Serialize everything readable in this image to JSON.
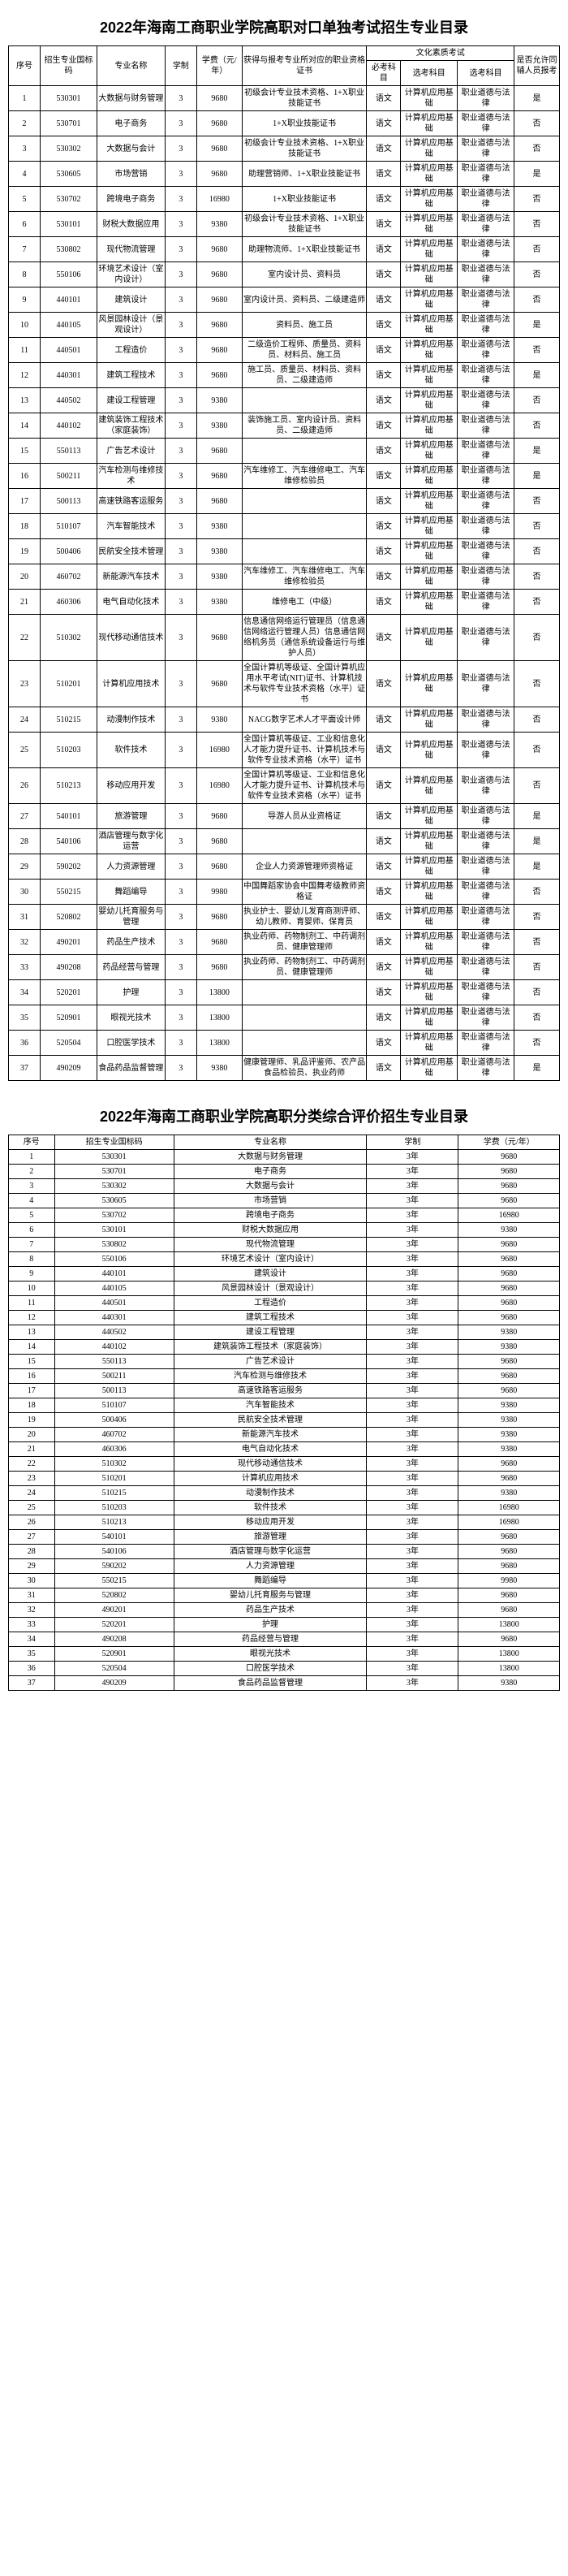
{
  "table1": {
    "title": "2022年海南工商职业学院高职对口单独考试招生专业目录",
    "headers": {
      "h1": "序号",
      "h2": "招生专业国标码",
      "h3": "专业名称",
      "h4": "学制",
      "h5": "学费（元/年）",
      "h6": "获得与报考专业所对应的职业资格证书",
      "h7_group": "文化素质考试",
      "h7": "必考科目",
      "h8": "选考科目",
      "h9": "选考科目",
      "h10": "是否允许同辅人员报考"
    },
    "rows": [
      {
        "n": "1",
        "code": "530301",
        "name": "大数据与财务管理",
        "dur": "3",
        "fee": "9680",
        "cert": "初级会计专业技术资格、1+X职业技能证书",
        "req": "语文",
        "opt1": "计算机应用基础",
        "opt2": "职业道德与法律",
        "allow": "是"
      },
      {
        "n": "2",
        "code": "530701",
        "name": "电子商务",
        "dur": "3",
        "fee": "9680",
        "cert": "1+X职业技能证书",
        "req": "语文",
        "opt1": "计算机应用基础",
        "opt2": "职业道德与法律",
        "allow": "否"
      },
      {
        "n": "3",
        "code": "530302",
        "name": "大数据与会计",
        "dur": "3",
        "fee": "9680",
        "cert": "初级会计专业技术资格、1+X职业技能证书",
        "req": "语文",
        "opt1": "计算机应用基础",
        "opt2": "职业道德与法律",
        "allow": "否"
      },
      {
        "n": "4",
        "code": "530605",
        "name": "市场营销",
        "dur": "3",
        "fee": "9680",
        "cert": "助理营销师、1+X职业技能证书",
        "req": "语文",
        "opt1": "计算机应用基础",
        "opt2": "职业道德与法律",
        "allow": "是"
      },
      {
        "n": "5",
        "code": "530702",
        "name": "跨境电子商务",
        "dur": "3",
        "fee": "16980",
        "cert": "1+X职业技能证书",
        "req": "语文",
        "opt1": "计算机应用基础",
        "opt2": "职业道德与法律",
        "allow": "否"
      },
      {
        "n": "6",
        "code": "530101",
        "name": "财税大数据应用",
        "dur": "3",
        "fee": "9380",
        "cert": "初级会计专业技术资格、1+X职业技能证书",
        "req": "语文",
        "opt1": "计算机应用基础",
        "opt2": "职业道德与法律",
        "allow": "否"
      },
      {
        "n": "7",
        "code": "530802",
        "name": "现代物流管理",
        "dur": "3",
        "fee": "9680",
        "cert": "助理物流师、1+X职业技能证书",
        "req": "语文",
        "opt1": "计算机应用基础",
        "opt2": "职业道德与法律",
        "allow": "否"
      },
      {
        "n": "8",
        "code": "550106",
        "name": "环境艺术设计（室内设计）",
        "dur": "3",
        "fee": "9680",
        "cert": "室内设计员、资料员",
        "req": "语文",
        "opt1": "计算机应用基础",
        "opt2": "职业道德与法律",
        "allow": "否"
      },
      {
        "n": "9",
        "code": "440101",
        "name": "建筑设计",
        "dur": "3",
        "fee": "9680",
        "cert": "室内设计员、资料员、二级建造师",
        "req": "语文",
        "opt1": "计算机应用基础",
        "opt2": "职业道德与法律",
        "allow": "否"
      },
      {
        "n": "10",
        "code": "440105",
        "name": "风景园林设计（景观设计）",
        "dur": "3",
        "fee": "9680",
        "cert": "资料员、施工员",
        "req": "语文",
        "opt1": "计算机应用基础",
        "opt2": "职业道德与法律",
        "allow": "是"
      },
      {
        "n": "11",
        "code": "440501",
        "name": "工程造价",
        "dur": "3",
        "fee": "9680",
        "cert": "二级造价工程师、质量员、资料员、材料员、施工员",
        "req": "语文",
        "opt1": "计算机应用基础",
        "opt2": "职业道德与法律",
        "allow": "否"
      },
      {
        "n": "12",
        "code": "440301",
        "name": "建筑工程技术",
        "dur": "3",
        "fee": "9680",
        "cert": "施工员、质量员、材料员、资料员、二级建造师",
        "req": "语文",
        "opt1": "计算机应用基础",
        "opt2": "职业道德与法律",
        "allow": "是"
      },
      {
        "n": "13",
        "code": "440502",
        "name": "建设工程管理",
        "dur": "3",
        "fee": "9380",
        "cert": "",
        "req": "语文",
        "opt1": "计算机应用基础",
        "opt2": "职业道德与法律",
        "allow": "否"
      },
      {
        "n": "14",
        "code": "440102",
        "name": "建筑装饰工程技术（家庭装饰）",
        "dur": "3",
        "fee": "9380",
        "cert": "装饰施工员、室内设计员、资料员、二级建造师",
        "req": "语文",
        "opt1": "计算机应用基础",
        "opt2": "职业道德与法律",
        "allow": "否"
      },
      {
        "n": "15",
        "code": "550113",
        "name": "广告艺术设计",
        "dur": "3",
        "fee": "9680",
        "cert": "",
        "req": "语文",
        "opt1": "计算机应用基础",
        "opt2": "职业道德与法律",
        "allow": "是"
      },
      {
        "n": "16",
        "code": "500211",
        "name": "汽车检测与维修技术",
        "dur": "3",
        "fee": "9680",
        "cert": "汽车维修工、汽车维修电工、汽车维修检验员",
        "req": "语文",
        "opt1": "计算机应用基础",
        "opt2": "职业道德与法律",
        "allow": "是"
      },
      {
        "n": "17",
        "code": "500113",
        "name": "高速铁路客运服务",
        "dur": "3",
        "fee": "9680",
        "cert": "",
        "req": "语文",
        "opt1": "计算机应用基础",
        "opt2": "职业道德与法律",
        "allow": "否"
      },
      {
        "n": "18",
        "code": "510107",
        "name": "汽车智能技术",
        "dur": "3",
        "fee": "9380",
        "cert": "",
        "req": "语文",
        "opt1": "计算机应用基础",
        "opt2": "职业道德与法律",
        "allow": "否"
      },
      {
        "n": "19",
        "code": "500406",
        "name": "民航安全技术管理",
        "dur": "3",
        "fee": "9380",
        "cert": "",
        "req": "语文",
        "opt1": "计算机应用基础",
        "opt2": "职业道德与法律",
        "allow": "否"
      },
      {
        "n": "20",
        "code": "460702",
        "name": "新能源汽车技术",
        "dur": "3",
        "fee": "9380",
        "cert": "汽车维修工、汽车维修电工、汽车维修检验员",
        "req": "语文",
        "opt1": "计算机应用基础",
        "opt2": "职业道德与法律",
        "allow": "否"
      },
      {
        "n": "21",
        "code": "460306",
        "name": "电气自动化技术",
        "dur": "3",
        "fee": "9380",
        "cert": "维修电工（中级）",
        "req": "语文",
        "opt1": "计算机应用基础",
        "opt2": "职业道德与法律",
        "allow": "否"
      },
      {
        "n": "22",
        "code": "510302",
        "name": "现代移动通信技术",
        "dur": "3",
        "fee": "9680",
        "cert": "信息通信网络运行管理员（信息通信网络运行管理人员）信息通信网络机务员（通信系统设备运行与维护人员）",
        "req": "语文",
        "opt1": "计算机应用基础",
        "opt2": "职业道德与法律",
        "allow": "否"
      },
      {
        "n": "23",
        "code": "510201",
        "name": "计算机应用技术",
        "dur": "3",
        "fee": "9680",
        "cert": "全国计算机等级证、全国计算机应用水平考试(NIT)证书、计算机技术与软件专业技术资格（水平）证书",
        "req": "语文",
        "opt1": "计算机应用基础",
        "opt2": "职业道德与法律",
        "allow": "否"
      },
      {
        "n": "24",
        "code": "510215",
        "name": "动漫制作技术",
        "dur": "3",
        "fee": "9380",
        "cert": "NACG数字艺术人才平面设计师",
        "req": "语文",
        "opt1": "计算机应用基础",
        "opt2": "职业道德与法律",
        "allow": "否"
      },
      {
        "n": "25",
        "code": "510203",
        "name": "软件技术",
        "dur": "3",
        "fee": "16980",
        "cert": "全国计算机等级证、工业和信息化人才能力提升证书、计算机技术与软件专业技术资格（水平）证书",
        "req": "语文",
        "opt1": "计算机应用基础",
        "opt2": "职业道德与法律",
        "allow": "否"
      },
      {
        "n": "26",
        "code": "510213",
        "name": "移动应用开发",
        "dur": "3",
        "fee": "16980",
        "cert": "全国计算机等级证、工业和信息化人才能力提升证书、计算机技术与软件专业技术资格（水平）证书",
        "req": "语文",
        "opt1": "计算机应用基础",
        "opt2": "职业道德与法律",
        "allow": "否"
      },
      {
        "n": "27",
        "code": "540101",
        "name": "旅游管理",
        "dur": "3",
        "fee": "9680",
        "cert": "导游人员从业资格证",
        "req": "语文",
        "opt1": "计算机应用基础",
        "opt2": "职业道德与法律",
        "allow": "是"
      },
      {
        "n": "28",
        "code": "540106",
        "name": "酒店管理与数字化运营",
        "dur": "3",
        "fee": "9680",
        "cert": "",
        "req": "语文",
        "opt1": "计算机应用基础",
        "opt2": "职业道德与法律",
        "allow": "是"
      },
      {
        "n": "29",
        "code": "590202",
        "name": "人力资源管理",
        "dur": "3",
        "fee": "9680",
        "cert": "企业人力资源管理师资格证",
        "req": "语文",
        "opt1": "计算机应用基础",
        "opt2": "职业道德与法律",
        "allow": "是"
      },
      {
        "n": "30",
        "code": "550215",
        "name": "舞蹈编导",
        "dur": "3",
        "fee": "9980",
        "cert": "中国舞蹈家协会中国舞考级教师资格证",
        "req": "语文",
        "opt1": "计算机应用基础",
        "opt2": "职业道德与法律",
        "allow": "否"
      },
      {
        "n": "31",
        "code": "520802",
        "name": "婴幼儿托育服务与管理",
        "dur": "3",
        "fee": "9680",
        "cert": "执业护士、婴幼儿发育商测评师、幼儿教师、育婴师、保育员",
        "req": "语文",
        "opt1": "计算机应用基础",
        "opt2": "职业道德与法律",
        "allow": "否"
      },
      {
        "n": "32",
        "code": "490201",
        "name": "药品生产技术",
        "dur": "3",
        "fee": "9680",
        "cert": "执业药师、药物制剂工、中药调剂员、健康管理师",
        "req": "语文",
        "opt1": "计算机应用基础",
        "opt2": "职业道德与法律",
        "allow": "否"
      },
      {
        "n": "33",
        "code": "490208",
        "name": "药品经营与管理",
        "dur": "3",
        "fee": "9680",
        "cert": "执业药师、药物制剂工、中药调剂员、健康管理师",
        "req": "语文",
        "opt1": "计算机应用基础",
        "opt2": "职业道德与法律",
        "allow": "否"
      },
      {
        "n": "34",
        "code": "520201",
        "name": "护理",
        "dur": "3",
        "fee": "13800",
        "cert": "",
        "req": "语文",
        "opt1": "计算机应用基础",
        "opt2": "职业道德与法律",
        "allow": "否"
      },
      {
        "n": "35",
        "code": "520901",
        "name": "眼视光技术",
        "dur": "3",
        "fee": "13800",
        "cert": "",
        "req": "语文",
        "opt1": "计算机应用基础",
        "opt2": "职业道德与法律",
        "allow": "否"
      },
      {
        "n": "36",
        "code": "520504",
        "name": "口腔医学技术",
        "dur": "3",
        "fee": "13800",
        "cert": "",
        "req": "语文",
        "opt1": "计算机应用基础",
        "opt2": "职业道德与法律",
        "allow": "否"
      },
      {
        "n": "37",
        "code": "490209",
        "name": "食品药品监督管理",
        "dur": "3",
        "fee": "9380",
        "cert": "健康管理师、乳品评鉴师、农产品食品检验员、执业药师",
        "req": "语文",
        "opt1": "计算机应用基础",
        "opt2": "职业道德与法律",
        "allow": "是"
      }
    ]
  },
  "table2": {
    "title": "2022年海南工商职业学院高职分类综合评价招生专业目录",
    "headers": {
      "h1": "序号",
      "h2": "招生专业国标码",
      "h3": "专业名称",
      "h4": "学制",
      "h5": "学费（元/年）"
    },
    "rows": [
      {
        "n": "1",
        "code": "530301",
        "name": "大数据与财务管理",
        "dur": "3年",
        "fee": "9680"
      },
      {
        "n": "2",
        "code": "530701",
        "name": "电子商务",
        "dur": "3年",
        "fee": "9680"
      },
      {
        "n": "3",
        "code": "530302",
        "name": "大数据与会计",
        "dur": "3年",
        "fee": "9680"
      },
      {
        "n": "4",
        "code": "530605",
        "name": "市场营销",
        "dur": "3年",
        "fee": "9680"
      },
      {
        "n": "5",
        "code": "530702",
        "name": "跨境电子商务",
        "dur": "3年",
        "fee": "16980"
      },
      {
        "n": "6",
        "code": "530101",
        "name": "财税大数据应用",
        "dur": "3年",
        "fee": "9380"
      },
      {
        "n": "7",
        "code": "530802",
        "name": "现代物流管理",
        "dur": "3年",
        "fee": "9680"
      },
      {
        "n": "8",
        "code": "550106",
        "name": "环境艺术设计（室内设计）",
        "dur": "3年",
        "fee": "9680"
      },
      {
        "n": "9",
        "code": "440101",
        "name": "建筑设计",
        "dur": "3年",
        "fee": "9680"
      },
      {
        "n": "10",
        "code": "440105",
        "name": "风景园林设计（景观设计）",
        "dur": "3年",
        "fee": "9680"
      },
      {
        "n": "11",
        "code": "440501",
        "name": "工程造价",
        "dur": "3年",
        "fee": "9680"
      },
      {
        "n": "12",
        "code": "440301",
        "name": "建筑工程技术",
        "dur": "3年",
        "fee": "9680"
      },
      {
        "n": "13",
        "code": "440502",
        "name": "建设工程管理",
        "dur": "3年",
        "fee": "9380"
      },
      {
        "n": "14",
        "code": "440102",
        "name": "建筑装饰工程技术（家庭装饰）",
        "dur": "3年",
        "fee": "9380"
      },
      {
        "n": "15",
        "code": "550113",
        "name": "广告艺术设计",
        "dur": "3年",
        "fee": "9680"
      },
      {
        "n": "16",
        "code": "500211",
        "name": "汽车检测与维修技术",
        "dur": "3年",
        "fee": "9680"
      },
      {
        "n": "17",
        "code": "500113",
        "name": "高速铁路客运服务",
        "dur": "3年",
        "fee": "9680"
      },
      {
        "n": "18",
        "code": "510107",
        "name": "汽车智能技术",
        "dur": "3年",
        "fee": "9380"
      },
      {
        "n": "19",
        "code": "500406",
        "name": "民航安全技术管理",
        "dur": "3年",
        "fee": "9380"
      },
      {
        "n": "20",
        "code": "460702",
        "name": "新能源汽车技术",
        "dur": "3年",
        "fee": "9380"
      },
      {
        "n": "21",
        "code": "460306",
        "name": "电气自动化技术",
        "dur": "3年",
        "fee": "9380"
      },
      {
        "n": "22",
        "code": "510302",
        "name": "现代移动通信技术",
        "dur": "3年",
        "fee": "9680"
      },
      {
        "n": "23",
        "code": "510201",
        "name": "计算机应用技术",
        "dur": "3年",
        "fee": "9680"
      },
      {
        "n": "24",
        "code": "510215",
        "name": "动漫制作技术",
        "dur": "3年",
        "fee": "9380"
      },
      {
        "n": "25",
        "code": "510203",
        "name": "软件技术",
        "dur": "3年",
        "fee": "16980"
      },
      {
        "n": "26",
        "code": "510213",
        "name": "移动应用开发",
        "dur": "3年",
        "fee": "16980"
      },
      {
        "n": "27",
        "code": "540101",
        "name": "旅游管理",
        "dur": "3年",
        "fee": "9680"
      },
      {
        "n": "28",
        "code": "540106",
        "name": "酒店管理与数字化运营",
        "dur": "3年",
        "fee": "9680"
      },
      {
        "n": "29",
        "code": "590202",
        "name": "人力资源管理",
        "dur": "3年",
        "fee": "9680"
      },
      {
        "n": "30",
        "code": "550215",
        "name": "舞蹈编导",
        "dur": "3年",
        "fee": "9980"
      },
      {
        "n": "31",
        "code": "520802",
        "name": "婴幼儿托育服务与管理",
        "dur": "3年",
        "fee": "9680"
      },
      {
        "n": "32",
        "code": "490201",
        "name": "药品生产技术",
        "dur": "3年",
        "fee": "9680"
      },
      {
        "n": "33",
        "code": "520201",
        "name": "护理",
        "dur": "3年",
        "fee": "13800"
      },
      {
        "n": "34",
        "code": "490208",
        "name": "药品经营与管理",
        "dur": "3年",
        "fee": "9680"
      },
      {
        "n": "35",
        "code": "520901",
        "name": "眼视光技术",
        "dur": "3年",
        "fee": "13800"
      },
      {
        "n": "36",
        "code": "520504",
        "name": "口腔医学技术",
        "dur": "3年",
        "fee": "13800"
      },
      {
        "n": "37",
        "code": "490209",
        "name": "食品药品监督管理",
        "dur": "3年",
        "fee": "9380"
      }
    ]
  }
}
